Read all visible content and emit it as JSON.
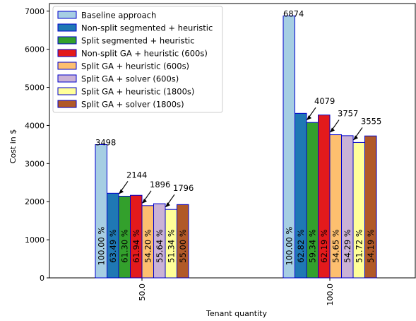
{
  "chart_data": {
    "type": "bar",
    "title": "",
    "xlabel": "Tenant quantity",
    "ylabel": "Cost in $",
    "ylim": [
      0,
      7200
    ],
    "yticks": [
      0,
      1000,
      2000,
      3000,
      4000,
      5000,
      6000,
      7000
    ],
    "grid": false,
    "legend_position": "top-left",
    "categories": [
      "50.0",
      "100.0"
    ],
    "series": [
      {
        "name": "Baseline approach",
        "color": "#a6cee3",
        "values": [
          3498,
          6874
        ],
        "pct_labels": [
          "100.00 %",
          "100.00 %"
        ]
      },
      {
        "name": "Non-split segmented + heuristic",
        "color": "#1f78b4",
        "values": [
          2221,
          4318
        ],
        "pct_labels": [
          "63.49 %",
          "62.82 %"
        ]
      },
      {
        "name": "Split segmented + heuristic",
        "color": "#33a02c",
        "values": [
          2144,
          4079
        ],
        "pct_labels": [
          "61.30 %",
          "59.34 %"
        ]
      },
      {
        "name": "Non-split GA + heuristic (600s)",
        "color": "#e31a1c",
        "values": [
          2167,
          4275
        ],
        "pct_labels": [
          "61.94 %",
          "62.19 %"
        ]
      },
      {
        "name": "Split GA + heuristic (600s)",
        "color": "#fdbf6f",
        "values": [
          1896,
          3757
        ],
        "pct_labels": [
          "54.20 %",
          "54.65 %"
        ]
      },
      {
        "name": "Split GA + solver (600s)",
        "color": "#cab2d6",
        "values": [
          1946,
          3732
        ],
        "pct_labels": [
          "55.64 %",
          "54.29 %"
        ]
      },
      {
        "name": "Split GA + heuristic (1800s)",
        "color": "#ffff99",
        "values": [
          1796,
          3555
        ],
        "pct_labels": [
          "51.34 %",
          "51.72 %"
        ]
      },
      {
        "name": "Split GA + solver (1800s)",
        "color": "#b15928",
        "values": [
          1924,
          3725
        ],
        "pct_labels": [
          "55.00 %",
          "54.19 %"
        ]
      }
    ],
    "annotations": [
      {
        "text": "3498",
        "category": 0,
        "series": 0,
        "arrow": false
      },
      {
        "text": "2144",
        "category": 0,
        "series": 2,
        "arrow": true
      },
      {
        "text": "1896",
        "category": 0,
        "series": 4,
        "arrow": true
      },
      {
        "text": "1796",
        "category": 0,
        "series": 6,
        "arrow": true
      },
      {
        "text": "6874",
        "category": 1,
        "series": 0,
        "arrow": false
      },
      {
        "text": "4079",
        "category": 1,
        "series": 2,
        "arrow": true
      },
      {
        "text": "3757",
        "category": 1,
        "series": 4,
        "arrow": true
      },
      {
        "text": "3555",
        "category": 1,
        "series": 6,
        "arrow": true
      }
    ],
    "bar_edge_color": "#0000cc"
  }
}
